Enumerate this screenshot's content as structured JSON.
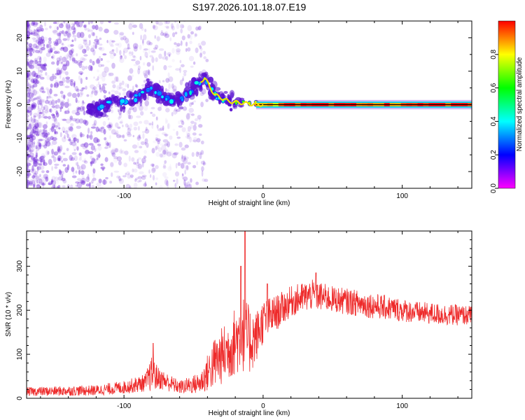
{
  "title": "S197.2026.101.18.07.E19",
  "colors": {
    "snr_line": "#ee2a2a",
    "frame": "#000000",
    "background": "#ffffff"
  },
  "chart_data": [
    {
      "type": "heatmap",
      "name": "spectrogram",
      "xlabel": "Height of straight line (km)",
      "ylabel": "Frequency (Hz)",
      "xlim": [
        -170,
        150
      ],
      "ylim": [
        -25,
        25
      ],
      "xticks": [
        -100,
        0,
        100
      ],
      "yticks": [
        -20,
        -10,
        0,
        10,
        20
      ],
      "xtick_labels": [
        "-100",
        "0",
        "100"
      ],
      "ytick_labels": [
        "-20",
        "-10",
        "0",
        "10",
        "20"
      ],
      "colorbar": {
        "label": "Normalized spectral amplitude",
        "range": [
          0,
          1
        ],
        "ticks": [
          "0.0",
          "0.2",
          "0.4",
          "0.6",
          "0.8"
        ],
        "colormap": "rainbow (magenta-blue-cyan-green-yellow-red)"
      },
      "ridge": [
        {
          "x": -120,
          "freq": -1.5,
          "amp": 0.25
        },
        {
          "x": -110,
          "freq": 0.5,
          "amp": 0.3
        },
        {
          "x": -100,
          "freq": 1.0,
          "amp": 0.3
        },
        {
          "x": -90,
          "freq": 2.5,
          "amp": 0.3
        },
        {
          "x": -80,
          "freq": 5.0,
          "amp": 0.3
        },
        {
          "x": -70,
          "freq": 1.5,
          "amp": 0.25
        },
        {
          "x": -60,
          "freq": 1.5,
          "amp": 0.3
        },
        {
          "x": -50,
          "freq": 5.0,
          "amp": 0.3
        },
        {
          "x": -42,
          "freq": 8.0,
          "amp": 0.3
        },
        {
          "x": -35,
          "freq": 3.0,
          "amp": 0.35
        },
        {
          "x": -25,
          "freq": 1.0,
          "amp": 0.4
        },
        {
          "x": -15,
          "freq": 0.5,
          "amp": 0.6
        },
        {
          "x": -5,
          "freq": 0.0,
          "amp": 0.75
        },
        {
          "x": 5,
          "freq": 0.0,
          "amp": 0.75
        },
        {
          "x": 20,
          "freq": 0.0,
          "amp": 0.9
        },
        {
          "x": 50,
          "freq": 0.0,
          "amp": 0.9
        },
        {
          "x": 80,
          "freq": 0.0,
          "amp": 0.85
        },
        {
          "x": 110,
          "freq": 0.0,
          "amp": 0.95
        },
        {
          "x": 150,
          "freq": 0.0,
          "amp": 0.95
        }
      ]
    },
    {
      "type": "line",
      "name": "snr",
      "xlabel": "Height of straight line (km)",
      "ylabel": "SNR (10 * v/v)",
      "xlim": [
        -170,
        150
      ],
      "ylim": [
        0,
        380
      ],
      "xticks": [
        -100,
        0,
        100
      ],
      "yticks": [
        0,
        100,
        200,
        300
      ],
      "xtick_labels": [
        "-100",
        "0",
        "100"
      ],
      "ytick_labels": [
        "0",
        "100",
        "200",
        "300"
      ],
      "envelope": [
        {
          "x": -170,
          "mean": 15,
          "spread": 10
        },
        {
          "x": -120,
          "mean": 18,
          "spread": 12
        },
        {
          "x": -100,
          "mean": 25,
          "spread": 15
        },
        {
          "x": -85,
          "mean": 35,
          "spread": 20
        },
        {
          "x": -80,
          "mean": 55,
          "spread": 40
        },
        {
          "x": -75,
          "mean": 45,
          "spread": 25
        },
        {
          "x": -60,
          "mean": 25,
          "spread": 15
        },
        {
          "x": -45,
          "mean": 35,
          "spread": 25
        },
        {
          "x": -35,
          "mean": 80,
          "spread": 60
        },
        {
          "x": -25,
          "mean": 110,
          "spread": 70
        },
        {
          "x": -15,
          "mean": 150,
          "spread": 90
        },
        {
          "x": -10,
          "mean": 130,
          "spread": 80
        },
        {
          "x": -5,
          "mean": 140,
          "spread": 60
        },
        {
          "x": 0,
          "mean": 175,
          "spread": 50
        },
        {
          "x": 10,
          "mean": 195,
          "spread": 40
        },
        {
          "x": 20,
          "mean": 220,
          "spread": 35
        },
        {
          "x": 35,
          "mean": 235,
          "spread": 35
        },
        {
          "x": 50,
          "mean": 225,
          "spread": 30
        },
        {
          "x": 70,
          "mean": 215,
          "spread": 30
        },
        {
          "x": 90,
          "mean": 205,
          "spread": 28
        },
        {
          "x": 110,
          "mean": 195,
          "spread": 25
        },
        {
          "x": 130,
          "mean": 190,
          "spread": 25
        },
        {
          "x": 150,
          "mean": 188,
          "spread": 22
        }
      ],
      "peaks": [
        {
          "x": -79,
          "value": 125
        },
        {
          "x": -13,
          "value": 380
        },
        {
          "x": -16,
          "value": 300
        },
        {
          "x": 3,
          "value": 260
        },
        {
          "x": 38,
          "value": 285
        }
      ]
    }
  ]
}
